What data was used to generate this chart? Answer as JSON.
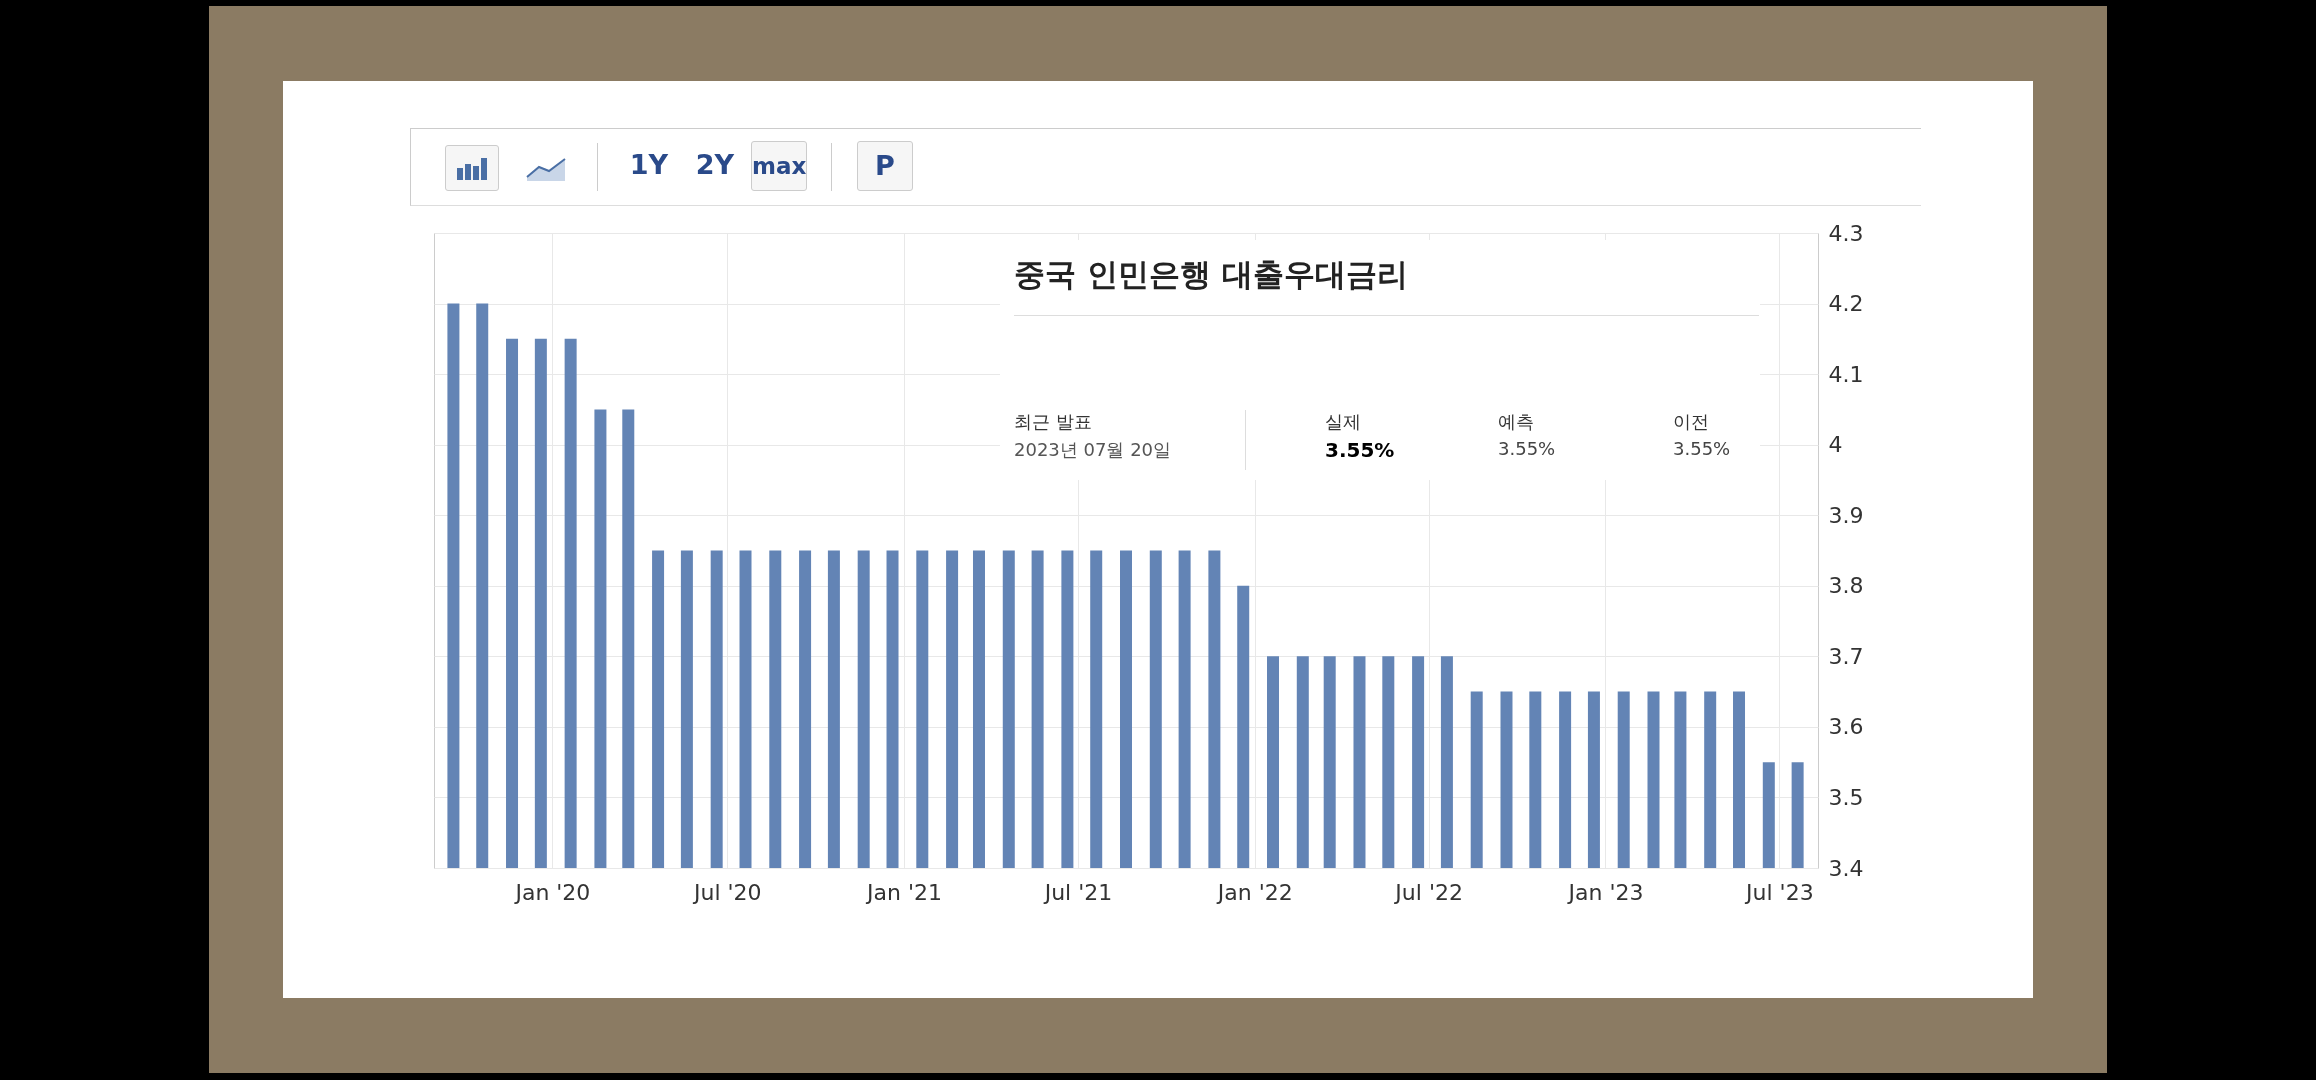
{
  "chart_data": {
    "type": "bar",
    "title": "중국 인민은행 대출우대금리",
    "x": [
      "2019-09-20",
      "2019-10-20",
      "2019-11-20",
      "2019-12-20",
      "2020-01-20",
      "2020-02-20",
      "2020-03-20",
      "2020-04-20",
      "2020-05-20",
      "2020-06-20",
      "2020-07-20",
      "2020-08-20",
      "2020-09-20",
      "2020-10-20",
      "2020-11-20",
      "2020-12-20",
      "2021-01-20",
      "2021-02-20",
      "2021-03-20",
      "2021-04-20",
      "2021-05-20",
      "2021-06-20",
      "2021-07-20",
      "2021-08-20",
      "2021-09-20",
      "2021-10-20",
      "2021-11-20",
      "2021-12-20",
      "2022-01-20",
      "2022-02-20",
      "2022-03-20",
      "2022-04-20",
      "2022-05-20",
      "2022-06-20",
      "2022-07-20",
      "2022-08-20",
      "2022-09-20",
      "2022-10-20",
      "2022-11-20",
      "2022-12-20",
      "2023-01-20",
      "2023-02-20",
      "2023-03-20",
      "2023-04-20",
      "2023-05-20",
      "2023-06-20",
      "2023-07-20"
    ],
    "values": [
      4.2,
      4.2,
      4.15,
      4.15,
      4.15,
      4.05,
      4.05,
      3.85,
      3.85,
      3.85,
      3.85,
      3.85,
      3.85,
      3.85,
      3.85,
      3.85,
      3.85,
      3.85,
      3.85,
      3.85,
      3.85,
      3.85,
      3.85,
      3.85,
      3.85,
      3.85,
      3.85,
      3.8,
      3.7,
      3.7,
      3.7,
      3.7,
      3.7,
      3.7,
      3.7,
      3.65,
      3.65,
      3.65,
      3.65,
      3.65,
      3.65,
      3.65,
      3.65,
      3.65,
      3.65,
      3.55,
      3.55
    ],
    "color": "#6384b5",
    "xlim": [
      "2019-09-05",
      "2023-08-05"
    ],
    "xticks": [
      {
        "value": "2020-01-01",
        "label": "Jan '20"
      },
      {
        "value": "2020-07-01",
        "label": "Jul '20"
      },
      {
        "value": "2021-01-01",
        "label": "Jan '21"
      },
      {
        "value": "2021-07-01",
        "label": "Jul '21"
      },
      {
        "value": "2022-01-01",
        "label": "Jan '22"
      },
      {
        "value": "2022-07-01",
        "label": "Jul '22"
      },
      {
        "value": "2023-01-01",
        "label": "Jan '23"
      },
      {
        "value": "2023-07-01",
        "label": "Jul '23"
      }
    ],
    "ylim": [
      3.4,
      4.3
    ],
    "yticks": [
      3.4,
      3.5,
      3.6,
      3.7,
      3.8,
      3.9,
      4,
      4.1,
      4.2,
      4.3
    ],
    "grid": true,
    "annotations": [
      "최근 발표",
      "2023년 07월 20일",
      "실제",
      "3.55%",
      "예측",
      "3.55%",
      "이전",
      "3.55%",
      "1Y",
      "2Y",
      "max",
      "P"
    ]
  }
}
